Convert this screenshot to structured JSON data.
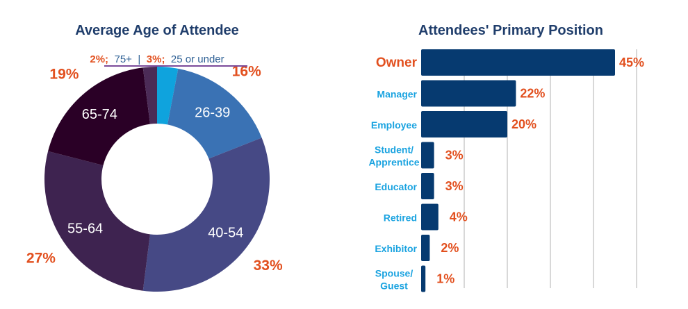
{
  "chart_data": [
    {
      "type": "pie",
      "variant": "donut",
      "title": "Average Age of Attendee",
      "start": "top, clockwise",
      "slices": [
        {
          "label": "25 or under",
          "value": 3,
          "pct_label": "3%;",
          "color": "#0fa3dd"
        },
        {
          "label": "26-39",
          "value": 16,
          "pct_label": "16%",
          "color": "#3a72b4"
        },
        {
          "label": "40-54",
          "value": 33,
          "pct_label": "33%",
          "color": "#464985"
        },
        {
          "label": "55-64",
          "value": 27,
          "pct_label": "27%",
          "color": "#3e2350"
        },
        {
          "label": "65-74",
          "value": 19,
          "pct_label": "19%",
          "color": "#2a0026"
        },
        {
          "label": "75+",
          "value": 2,
          "pct_label": "2%;",
          "color": "#4b2b57"
        }
      ],
      "annotation_separator": "|",
      "annotation_line_color": "#7a4a9a"
    },
    {
      "type": "bar",
      "orientation": "horizontal",
      "title": "Attendees' Primary Position",
      "categories": [
        "Owner",
        "Manager",
        "Employee",
        "Student/ Apprentice",
        "Educator",
        "Retired",
        "Exhibitor",
        "Spouse/ Guest"
      ],
      "category_lines": [
        [
          "Owner"
        ],
        [
          "Manager"
        ],
        [
          "Employee"
        ],
        [
          "Student/",
          "Apprentice"
        ],
        [
          "Educator"
        ],
        [
          "Retired"
        ],
        [
          "Exhibitor"
        ],
        [
          "Spouse/",
          "Guest"
        ]
      ],
      "values": [
        45,
        22,
        20,
        3,
        3,
        4,
        2,
        1
      ],
      "value_labels": [
        "45%",
        "22%",
        "20%",
        "3%",
        "3%",
        "4%",
        "2%",
        "1%"
      ],
      "xlim": [
        0,
        50
      ],
      "grid": true,
      "bar_color": "#063a70",
      "highlight_category_color": "#e2501f",
      "category_color": "#1aa3e0"
    }
  ]
}
